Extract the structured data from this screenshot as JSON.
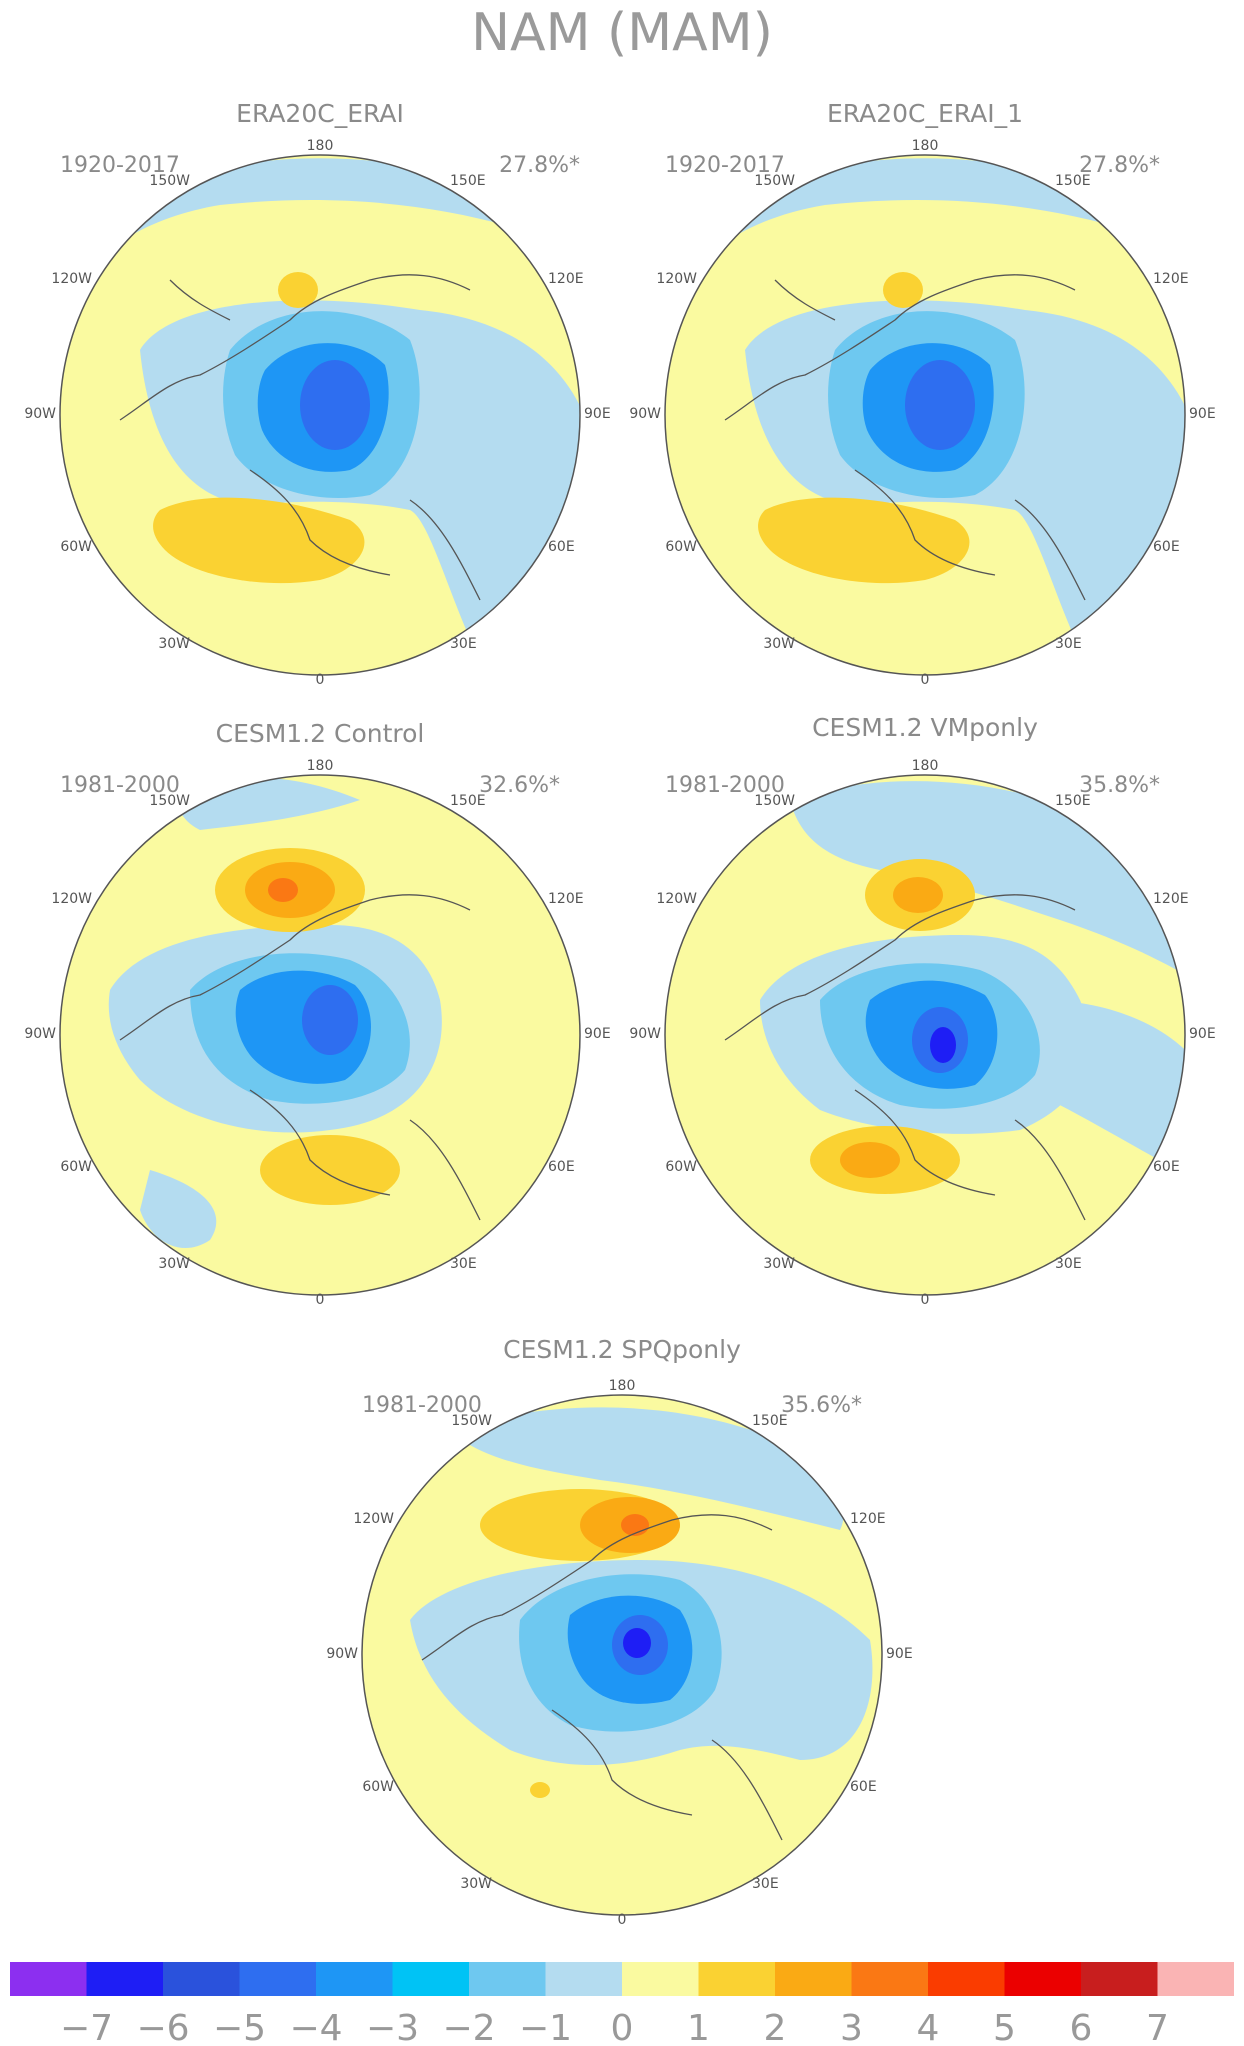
{
  "figure_title": "NAM (MAM)",
  "longitude_labels": [
    "180",
    "150E",
    "120E",
    "90E",
    "60E",
    "30E",
    "0",
    "30W",
    "60W",
    "90W",
    "120W",
    "150W"
  ],
  "colorbar": {
    "ticks": [
      "−7",
      "−6",
      "−5",
      "−4",
      "−3",
      "−2",
      "−1",
      "0",
      "1",
      "2",
      "3",
      "4",
      "5",
      "6",
      "7"
    ],
    "colors": [
      "#8c2ff0",
      "#1e1ef5",
      "#2a52dc",
      "#2e6ef0",
      "#1e96f5",
      "#00c3f5",
      "#6ec8f0",
      "#b4dcf0",
      "#fafaa0",
      "#fad232",
      "#faaa14",
      "#fa7814",
      "#fa3c00",
      "#eb0000",
      "#c81e1e",
      "#fab4b4"
    ]
  },
  "chart_data": [
    {
      "type": "heatmap",
      "projection": "north-polar-stereographic",
      "title": "ERA20C_ERAI",
      "period": "1920-2017",
      "variance_explained": "27.8%*"
    },
    {
      "type": "heatmap",
      "projection": "north-polar-stereographic",
      "title": "ERA20C_ERAI_1",
      "period": "1920-2017",
      "variance_explained": "27.8%*"
    },
    {
      "type": "heatmap",
      "projection": "north-polar-stereographic",
      "title": "CESM1.2 Control",
      "period": "1981-2000",
      "variance_explained": "32.6%*"
    },
    {
      "type": "heatmap",
      "projection": "north-polar-stereographic",
      "title": "CESM1.2 VMponly",
      "period": "1981-2000",
      "variance_explained": "35.8%*"
    },
    {
      "type": "heatmap",
      "projection": "north-polar-stereographic",
      "title": "CESM1.2 SPQponly",
      "period": "1981-2000",
      "variance_explained": "35.6%*"
    }
  ]
}
